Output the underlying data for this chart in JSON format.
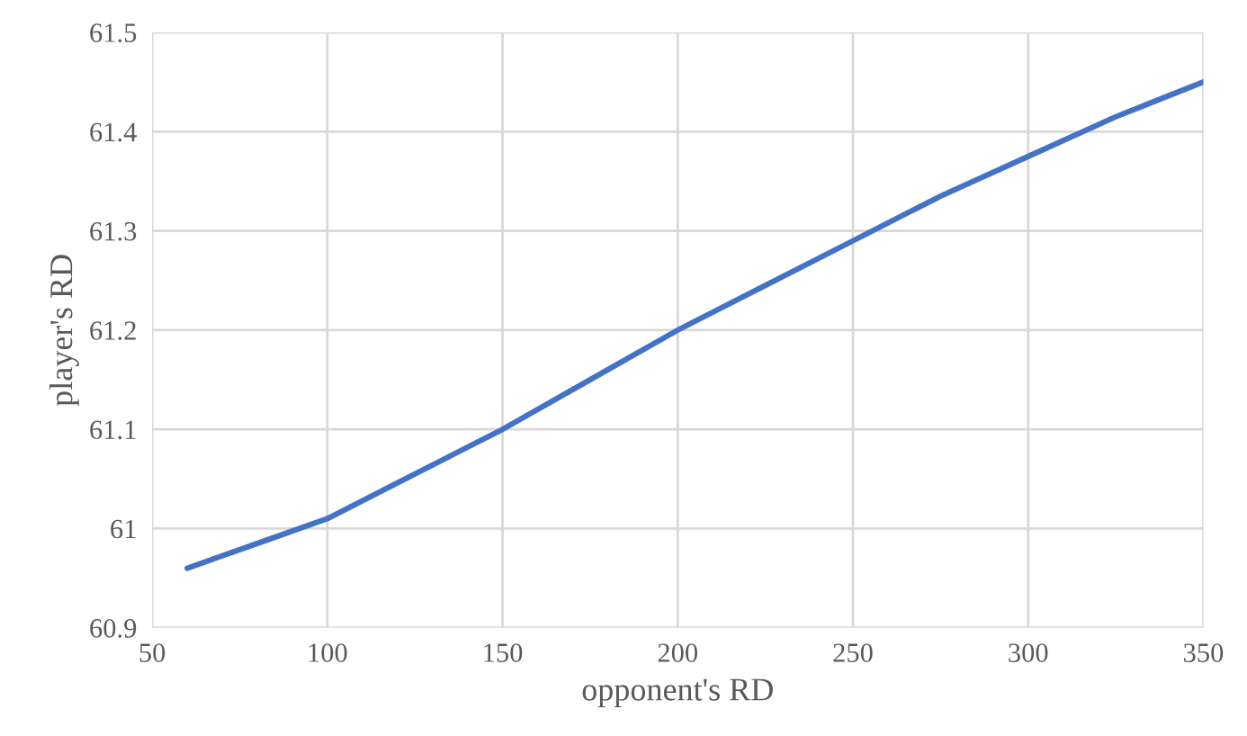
{
  "chart_data": {
    "type": "line",
    "xlabel": "opponent's RD",
    "ylabel": "player's RD",
    "x": [
      60,
      80,
      100,
      125,
      150,
      175,
      200,
      225,
      250,
      275,
      300,
      325,
      350
    ],
    "series": [
      {
        "color": "#4472c4",
        "values": [
          60.96,
          60.985,
          61.01,
          61.055,
          61.1,
          61.15,
          61.2,
          61.245,
          61.29,
          61.335,
          61.375,
          61.415,
          61.45
        ]
      }
    ],
    "xlim": [
      50,
      350
    ],
    "xticks": [
      50,
      100,
      150,
      200,
      250,
      300,
      350
    ],
    "ylim": [
      60.9,
      61.5
    ],
    "yticks": [
      {
        "value": 60.9,
        "label": "60.9"
      },
      {
        "value": 61.0,
        "label": "61"
      },
      {
        "value": 61.1,
        "label": "61.1"
      },
      {
        "value": 61.2,
        "label": "61.2"
      },
      {
        "value": 61.3,
        "label": "61.3"
      },
      {
        "value": 61.4,
        "label": "61.4"
      },
      {
        "value": 61.5,
        "label": "61.5"
      }
    ],
    "grid": true
  }
}
